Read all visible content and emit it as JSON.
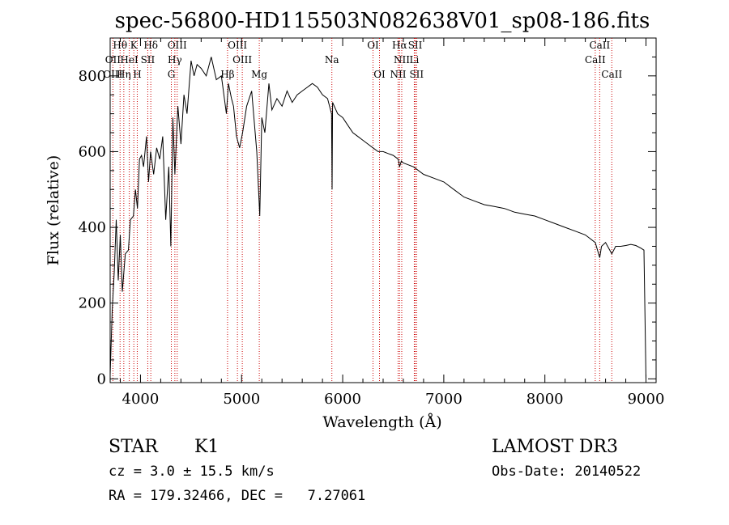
{
  "chart_data": {
    "type": "line",
    "title": "spec-56800-HD115503N082638V01_sp08-186.fits",
    "xlabel": "Wavelength (Å)",
    "ylabel": "Flux (relative)",
    "xlim": [
      3700,
      9100
    ],
    "ylim": [
      -10,
      900
    ],
    "xticks": [
      4000,
      5000,
      6000,
      7000,
      8000,
      9000
    ],
    "yticks": [
      0,
      200,
      400,
      600,
      800
    ],
    "series": [
      {
        "name": "spectrum",
        "x": [
          3700,
          3720,
          3740,
          3760,
          3780,
          3800,
          3820,
          3850,
          3880,
          3900,
          3930,
          3950,
          3970,
          3990,
          4010,
          4030,
          4060,
          4080,
          4100,
          4130,
          4160,
          4190,
          4220,
          4250,
          4280,
          4300,
          4320,
          4340,
          4370,
          4400,
          4430,
          4460,
          4500,
          4530,
          4560,
          4600,
          4650,
          4700,
          4750,
          4800,
          4850,
          4870,
          4900,
          4920,
          4950,
          4980,
          5010,
          5050,
          5100,
          5150,
          5180,
          5200,
          5230,
          5270,
          5300,
          5350,
          5400,
          5450,
          5500,
          5550,
          5600,
          5650,
          5700,
          5750,
          5800,
          5850,
          5890,
          5895,
          5900,
          5950,
          6000,
          6050,
          6100,
          6150,
          6200,
          6250,
          6300,
          6350,
          6400,
          6450,
          6500,
          6550,
          6563,
          6580,
          6600,
          6650,
          6700,
          6800,
          6900,
          7000,
          7100,
          7200,
          7300,
          7400,
          7500,
          7600,
          7700,
          7800,
          7900,
          8000,
          8100,
          8200,
          8300,
          8400,
          8498,
          8542,
          8560,
          8600,
          8662,
          8700,
          8750,
          8800,
          8850,
          8900,
          8950,
          8980,
          9000
        ],
        "values": [
          10,
          180,
          280,
          420,
          260,
          380,
          230,
          330,
          340,
          420,
          430,
          500,
          450,
          580,
          590,
          560,
          640,
          520,
          600,
          540,
          610,
          580,
          640,
          420,
          560,
          350,
          690,
          540,
          720,
          620,
          750,
          700,
          840,
          800,
          830,
          820,
          800,
          850,
          790,
          800,
          700,
          780,
          740,
          720,
          640,
          610,
          650,
          720,
          760,
          600,
          430,
          690,
          650,
          780,
          710,
          740,
          720,
          760,
          730,
          750,
          760,
          770,
          780,
          770,
          750,
          740,
          700,
          500,
          730,
          700,
          690,
          670,
          650,
          640,
          630,
          620,
          610,
          600,
          600,
          595,
          590,
          580,
          560,
          575,
          570,
          565,
          560,
          540,
          530,
          520,
          500,
          480,
          470,
          460,
          455,
          450,
          440,
          435,
          430,
          420,
          410,
          400,
          390,
          380,
          360,
          320,
          350,
          360,
          330,
          350,
          350,
          352,
          355,
          352,
          345,
          340,
          0
        ]
      }
    ],
    "spectral_lines": [
      {
        "name": "Hθ",
        "wavelength": 3798,
        "row": 0
      },
      {
        "name": "K",
        "wavelength": 3934,
        "row": 0
      },
      {
        "name": "Hδ",
        "wavelength": 4102,
        "row": 0
      },
      {
        "name": "OIII",
        "wavelength": 4363,
        "row": 0
      },
      {
        "name": "OIII",
        "wavelength": 4959,
        "row": 0
      },
      {
        "name": "OI",
        "wavelength": 6300,
        "row": 0
      },
      {
        "name": "Hα",
        "wavelength": 6563,
        "row": 0
      },
      {
        "name": "SII",
        "wavelength": 6717,
        "row": 0
      },
      {
        "name": "CaII",
        "wavelength": 8542,
        "row": 0
      },
      {
        "name": "OII",
        "wavelength": 3727,
        "row": 1
      },
      {
        "name": "HeI",
        "wavelength": 3889,
        "row": 1
      },
      {
        "name": "SII",
        "wavelength": 4072,
        "row": 1
      },
      {
        "name": "Hγ",
        "wavelength": 4340,
        "row": 1
      },
      {
        "name": "OIII",
        "wavelength": 5007,
        "row": 1
      },
      {
        "name": "Na",
        "wavelength": 5893,
        "row": 1
      },
      {
        "name": "NII",
        "wavelength": 6584,
        "row": 1
      },
      {
        "name": "Li",
        "wavelength": 6708,
        "row": 1
      },
      {
        "name": "CaII",
        "wavelength": 8498,
        "row": 1
      },
      {
        "name": "OIII",
        "wavelength": 3727,
        "row": 2
      },
      {
        "name": "Hη",
        "wavelength": 3835,
        "row": 2
      },
      {
        "name": "H",
        "wavelength": 3968,
        "row": 2
      },
      {
        "name": "G",
        "wavelength": 4305,
        "row": 2
      },
      {
        "name": "Hβ",
        "wavelength": 4861,
        "row": 2
      },
      {
        "name": "Mg",
        "wavelength": 5175,
        "row": 2
      },
      {
        "name": "OI",
        "wavelength": 6364,
        "row": 2
      },
      {
        "name": "NII",
        "wavelength": 6548,
        "row": 2
      },
      {
        "name": "SII",
        "wavelength": 6731,
        "row": 2
      },
      {
        "name": "CaII",
        "wavelength": 8662,
        "row": 2
      }
    ]
  },
  "info": {
    "object_class": "STAR",
    "subclass": "K1",
    "survey": "LAMOST DR3",
    "cz": "cz = 3.0 ± 15.5 km/s",
    "obs_date": "Obs-Date: 20140522",
    "radec": "RA = 179.32466, DEC =   7.27061"
  }
}
